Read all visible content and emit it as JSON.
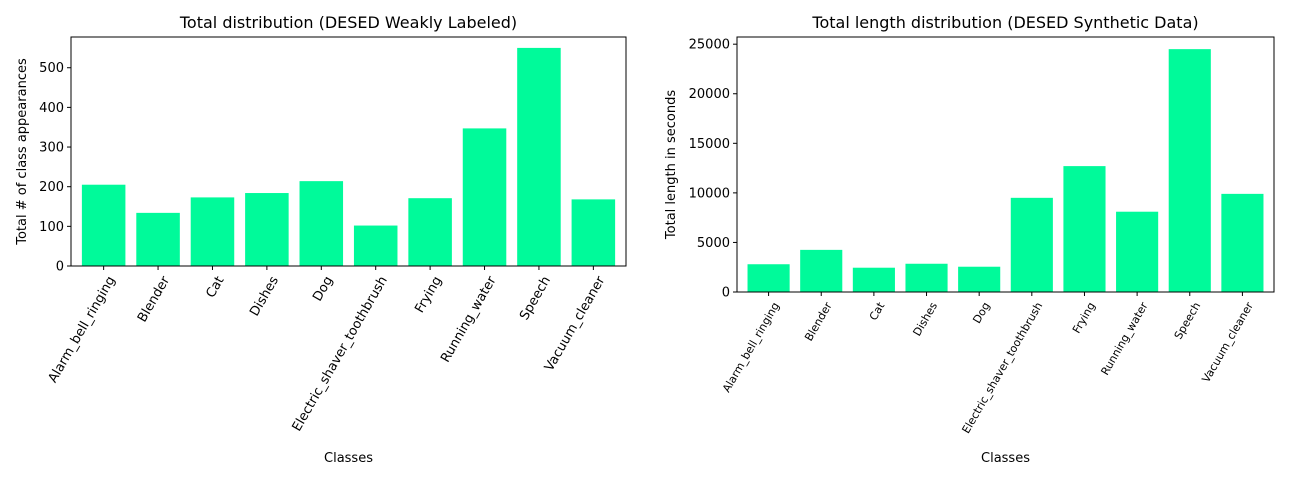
{
  "chart_data": [
    {
      "type": "bar",
      "title": "Total distribution (DESED Weakly Labeled)",
      "xlabel": "Classes",
      "ylabel": "Total # of class appearances",
      "categories": [
        "Alarm_bell_ringing",
        "Blender",
        "Cat",
        "Dishes",
        "Dog",
        "Electric_shaver_toothbrush",
        "Frying",
        "Running_water",
        "Speech",
        "Vacuum_cleaner"
      ],
      "values": [
        205,
        134,
        173,
        184,
        214,
        102,
        171,
        347,
        550,
        168
      ],
      "yticks": [
        0,
        100,
        200,
        300,
        400,
        500
      ],
      "ylim": [
        0,
        577.5
      ],
      "grid": false,
      "bar_color": "#00FA9A"
    },
    {
      "type": "bar",
      "title": "Total length distribution (DESED Synthetic Data)",
      "xlabel": "Classes",
      "ylabel": "Total length in seconds",
      "categories": [
        "Alarm_bell_ringing",
        "Blender",
        "Cat",
        "Dishes",
        "Dog",
        "Electric_shaver_toothbrush",
        "Frying",
        "Running_water",
        "Speech",
        "Vacuum_cleaner"
      ],
      "values": [
        2800,
        4250,
        2450,
        2850,
        2550,
        9500,
        12700,
        8100,
        24500,
        9900
      ],
      "yticks": [
        0,
        5000,
        10000,
        15000,
        20000,
        25000
      ],
      "ylim": [
        0,
        25725
      ],
      "grid": false,
      "bar_color": "#00FA9A"
    }
  ]
}
